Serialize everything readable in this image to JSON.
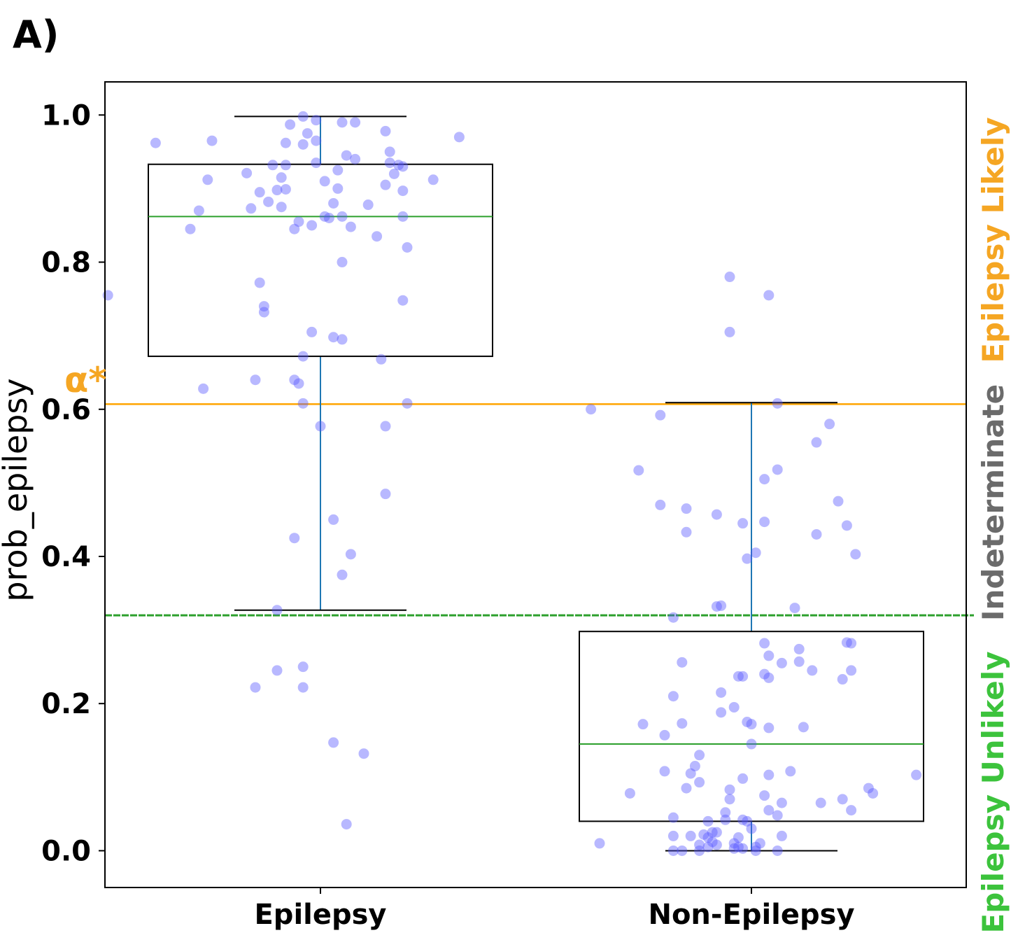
{
  "panel_label": "A)",
  "threshold_label": "α*",
  "region_labels": {
    "likely": "Epilepsy Likely",
    "indeterminate": "Indeterminate",
    "unlikely": "Epilepsy Unlikely"
  },
  "colors": {
    "likely": "#f5a623",
    "indeterminate": "#6b6b6b",
    "unlikely": "#3cc33c",
    "points": "#5555ff",
    "median": "#2ca02c",
    "whisker": "#1f77b4",
    "alpha_line": "#ffa500",
    "lower_line": "#2ca02c"
  },
  "chart_data": {
    "type": "box",
    "ylabel": "prob_epilepsy",
    "xlabel": "",
    "categories": [
      "Epilepsy",
      "Non-Epilepsy"
    ],
    "ylim": [
      -0.05,
      1.045
    ],
    "yticks": [
      0.0,
      0.2,
      0.4,
      0.6,
      0.8,
      1.0
    ],
    "ytick_labels": [
      "0.0",
      "0.2",
      "0.4",
      "0.6",
      "0.8",
      "1.0"
    ],
    "thresholds": {
      "alpha_star": 0.607,
      "lower": 0.32
    },
    "boxes": [
      {
        "category": "Epilepsy",
        "whisker_low": 0.327,
        "q1": 0.672,
        "median": 0.862,
        "q3": 0.933,
        "whisker_high": 0.998
      },
      {
        "category": "Non-Epilepsy",
        "whisker_low": 0.0,
        "q1": 0.04,
        "median": 0.145,
        "q3": 0.298,
        "whisker_high": 0.609
      }
    ],
    "points": [
      {
        "category": "Epilepsy",
        "values": [
          {
            "x": -0.49,
            "y": 0.755
          },
          {
            "x": -0.38,
            "y": 0.962
          },
          {
            "x": -0.25,
            "y": 0.965
          },
          {
            "x": -0.26,
            "y": 0.912
          },
          {
            "x": -0.28,
            "y": 0.87
          },
          {
            "x": -0.3,
            "y": 0.845
          },
          {
            "x": -0.17,
            "y": 0.921
          },
          {
            "x": -0.16,
            "y": 0.873
          },
          {
            "x": -0.14,
            "y": 0.895
          },
          {
            "x": -0.12,
            "y": 0.882
          },
          {
            "x": -0.11,
            "y": 0.932
          },
          {
            "x": -0.1,
            "y": 0.898
          },
          {
            "x": -0.09,
            "y": 0.915
          },
          {
            "x": -0.09,
            "y": 0.875
          },
          {
            "x": -0.08,
            "y": 0.899
          },
          {
            "x": -0.08,
            "y": 0.932
          },
          {
            "x": -0.08,
            "y": 0.962
          },
          {
            "x": -0.07,
            "y": 0.987
          },
          {
            "x": -0.06,
            "y": 0.845
          },
          {
            "x": -0.05,
            "y": 0.855
          },
          {
            "x": -0.04,
            "y": 0.998
          },
          {
            "x": -0.04,
            "y": 0.96
          },
          {
            "x": -0.03,
            "y": 0.975
          },
          {
            "x": -0.02,
            "y": 0.85
          },
          {
            "x": -0.01,
            "y": 0.935
          },
          {
            "x": -0.01,
            "y": 0.965
          },
          {
            "x": -0.01,
            "y": 0.993
          },
          {
            "x": 0.01,
            "y": 0.862
          },
          {
            "x": 0.01,
            "y": 0.91
          },
          {
            "x": 0.02,
            "y": 0.86
          },
          {
            "x": 0.03,
            "y": 0.88
          },
          {
            "x": 0.04,
            "y": 0.925
          },
          {
            "x": 0.04,
            "y": 0.9
          },
          {
            "x": 0.05,
            "y": 0.862
          },
          {
            "x": 0.05,
            "y": 0.99
          },
          {
            "x": 0.06,
            "y": 0.945
          },
          {
            "x": 0.07,
            "y": 0.848
          },
          {
            "x": 0.08,
            "y": 0.94
          },
          {
            "x": 0.08,
            "y": 0.99
          },
          {
            "x": 0.11,
            "y": 0.878
          },
          {
            "x": 0.13,
            "y": 0.835
          },
          {
            "x": 0.15,
            "y": 0.905
          },
          {
            "x": 0.15,
            "y": 0.978
          },
          {
            "x": 0.16,
            "y": 0.935
          },
          {
            "x": 0.16,
            "y": 0.95
          },
          {
            "x": 0.17,
            "y": 0.92
          },
          {
            "x": 0.18,
            "y": 0.932
          },
          {
            "x": 0.19,
            "y": 0.897
          },
          {
            "x": 0.19,
            "y": 0.93
          },
          {
            "x": 0.19,
            "y": 0.862
          },
          {
            "x": 0.2,
            "y": 0.82
          },
          {
            "x": 0.26,
            "y": 0.912
          },
          {
            "x": 0.32,
            "y": 0.97
          },
          {
            "x": 0.19,
            "y": 0.748
          },
          {
            "x": 0.05,
            "y": 0.8
          },
          {
            "x": -0.14,
            "y": 0.772
          },
          {
            "x": -0.13,
            "y": 0.74
          },
          {
            "x": -0.13,
            "y": 0.732
          },
          {
            "x": -0.02,
            "y": 0.705
          },
          {
            "x": 0.03,
            "y": 0.698
          },
          {
            "x": 0.05,
            "y": 0.695
          },
          {
            "x": 0.14,
            "y": 0.668
          },
          {
            "x": -0.04,
            "y": 0.672
          },
          {
            "x": -0.27,
            "y": 0.628
          },
          {
            "x": -0.15,
            "y": 0.64
          },
          {
            "x": -0.06,
            "y": 0.64
          },
          {
            "x": -0.05,
            "y": 0.635
          },
          {
            "x": -0.04,
            "y": 0.608
          },
          {
            "x": 0.2,
            "y": 0.608
          },
          {
            "x": 0.0,
            "y": 0.577
          },
          {
            "x": 0.15,
            "y": 0.577
          },
          {
            "x": 0.15,
            "y": 0.485
          },
          {
            "x": 0.03,
            "y": 0.45
          },
          {
            "x": -0.06,
            "y": 0.425
          },
          {
            "x": 0.07,
            "y": 0.403
          },
          {
            "x": 0.05,
            "y": 0.375
          },
          {
            "x": -0.1,
            "y": 0.327
          },
          {
            "x": -0.15,
            "y": 0.222
          },
          {
            "x": -0.1,
            "y": 0.245
          },
          {
            "x": -0.04,
            "y": 0.25
          },
          {
            "x": -0.04,
            "y": 0.222
          },
          {
            "x": 0.03,
            "y": 0.147
          },
          {
            "x": 0.1,
            "y": 0.132
          },
          {
            "x": 0.06,
            "y": 0.036
          }
        ]
      },
      {
        "category": "Non-Epilepsy",
        "values": [
          {
            "x": -0.37,
            "y": 0.6
          },
          {
            "x": -0.21,
            "y": 0.592
          },
          {
            "x": -0.26,
            "y": 0.517
          },
          {
            "x": -0.21,
            "y": 0.47
          },
          {
            "x": -0.15,
            "y": 0.465
          },
          {
            "x": -0.15,
            "y": 0.433
          },
          {
            "x": -0.08,
            "y": 0.457
          },
          {
            "x": -0.05,
            "y": 0.78
          },
          {
            "x": -0.05,
            "y": 0.705
          },
          {
            "x": 0.04,
            "y": 0.755
          },
          {
            "x": 0.06,
            "y": 0.608
          },
          {
            "x": 0.15,
            "y": 0.555
          },
          {
            "x": 0.18,
            "y": 0.58
          },
          {
            "x": 0.03,
            "y": 0.505
          },
          {
            "x": 0.06,
            "y": 0.518
          },
          {
            "x": 0.2,
            "y": 0.475
          },
          {
            "x": -0.02,
            "y": 0.445
          },
          {
            "x": 0.03,
            "y": 0.447
          },
          {
            "x": 0.22,
            "y": 0.442
          },
          {
            "x": 0.15,
            "y": 0.43
          },
          {
            "x": -0.01,
            "y": 0.397
          },
          {
            "x": 0.01,
            "y": 0.405
          },
          {
            "x": 0.24,
            "y": 0.403
          },
          {
            "x": -0.08,
            "y": 0.332
          },
          {
            "x": -0.07,
            "y": 0.333
          },
          {
            "x": 0.1,
            "y": 0.33
          },
          {
            "x": -0.18,
            "y": 0.317
          },
          {
            "x": -0.16,
            "y": 0.256
          },
          {
            "x": 0.03,
            "y": 0.282
          },
          {
            "x": 0.04,
            "y": 0.265
          },
          {
            "x": 0.07,
            "y": 0.255
          },
          {
            "x": 0.11,
            "y": 0.257
          },
          {
            "x": 0.11,
            "y": 0.274
          },
          {
            "x": 0.14,
            "y": 0.245
          },
          {
            "x": 0.22,
            "y": 0.283
          },
          {
            "x": 0.23,
            "y": 0.282
          },
          {
            "x": 0.21,
            "y": 0.233
          },
          {
            "x": 0.23,
            "y": 0.245
          },
          {
            "x": 0.03,
            "y": 0.24
          },
          {
            "x": 0.04,
            "y": 0.235
          },
          {
            "x": -0.03,
            "y": 0.237
          },
          {
            "x": -0.02,
            "y": 0.237
          },
          {
            "x": -0.18,
            "y": 0.21
          },
          {
            "x": -0.07,
            "y": 0.215
          },
          {
            "x": -0.04,
            "y": 0.195
          },
          {
            "x": -0.07,
            "y": 0.188
          },
          {
            "x": -0.25,
            "y": 0.172
          },
          {
            "x": -0.16,
            "y": 0.173
          },
          {
            "x": -0.2,
            "y": 0.157
          },
          {
            "x": -0.01,
            "y": 0.175
          },
          {
            "x": 0.0,
            "y": 0.172
          },
          {
            "x": 0.04,
            "y": 0.167
          },
          {
            "x": 0.12,
            "y": 0.168
          },
          {
            "x": 0.0,
            "y": 0.145
          },
          {
            "x": -0.12,
            "y": 0.13
          },
          {
            "x": -0.13,
            "y": 0.115
          },
          {
            "x": -0.14,
            "y": 0.105
          },
          {
            "x": -0.2,
            "y": 0.108
          },
          {
            "x": -0.12,
            "y": 0.093
          },
          {
            "x": -0.15,
            "y": 0.085
          },
          {
            "x": -0.02,
            "y": 0.098
          },
          {
            "x": 0.04,
            "y": 0.103
          },
          {
            "x": 0.09,
            "y": 0.108
          },
          {
            "x": 0.38,
            "y": 0.103
          },
          {
            "x": -0.28,
            "y": 0.078
          },
          {
            "x": -0.05,
            "y": 0.083
          },
          {
            "x": -0.05,
            "y": 0.07
          },
          {
            "x": 0.03,
            "y": 0.075
          },
          {
            "x": 0.07,
            "y": 0.065
          },
          {
            "x": 0.16,
            "y": 0.065
          },
          {
            "x": 0.21,
            "y": 0.07
          },
          {
            "x": 0.27,
            "y": 0.085
          },
          {
            "x": 0.28,
            "y": 0.078
          },
          {
            "x": 0.04,
            "y": 0.055
          },
          {
            "x": 0.06,
            "y": 0.048
          },
          {
            "x": 0.23,
            "y": 0.055
          },
          {
            "x": -0.18,
            "y": 0.045
          },
          {
            "x": -0.06,
            "y": 0.052
          },
          {
            "x": -0.06,
            "y": 0.042
          },
          {
            "x": -0.02,
            "y": 0.042
          },
          {
            "x": -0.01,
            "y": 0.04
          },
          {
            "x": 0.0,
            "y": 0.03
          },
          {
            "x": -0.1,
            "y": 0.04
          },
          {
            "x": -0.11,
            "y": 0.022
          },
          {
            "x": -0.09,
            "y": 0.025
          },
          {
            "x": -0.1,
            "y": 0.018
          },
          {
            "x": -0.08,
            "y": 0.025
          },
          {
            "x": -0.14,
            "y": 0.02
          },
          {
            "x": -0.18,
            "y": 0.02
          },
          {
            "x": -0.03,
            "y": 0.018
          },
          {
            "x": -0.09,
            "y": 0.012
          },
          {
            "x": -0.12,
            "y": 0.008
          },
          {
            "x": -0.1,
            "y": 0.005
          },
          {
            "x": -0.08,
            "y": 0.008
          },
          {
            "x": -0.04,
            "y": 0.01
          },
          {
            "x": 0.02,
            "y": 0.01
          },
          {
            "x": 0.07,
            "y": 0.02
          },
          {
            "x": -0.35,
            "y": 0.01
          },
          {
            "x": -0.18,
            "y": 0.0
          },
          {
            "x": -0.16,
            "y": 0.0
          },
          {
            "x": -0.12,
            "y": 0.0
          },
          {
            "x": -0.04,
            "y": 0.003
          },
          {
            "x": -0.03,
            "y": 0.005
          },
          {
            "x": -0.02,
            "y": 0.003
          },
          {
            "x": 0.01,
            "y": 0.0
          },
          {
            "x": 0.06,
            "y": 0.0
          },
          {
            "x": 0.01,
            "y": 0.005
          }
        ]
      }
    ]
  }
}
